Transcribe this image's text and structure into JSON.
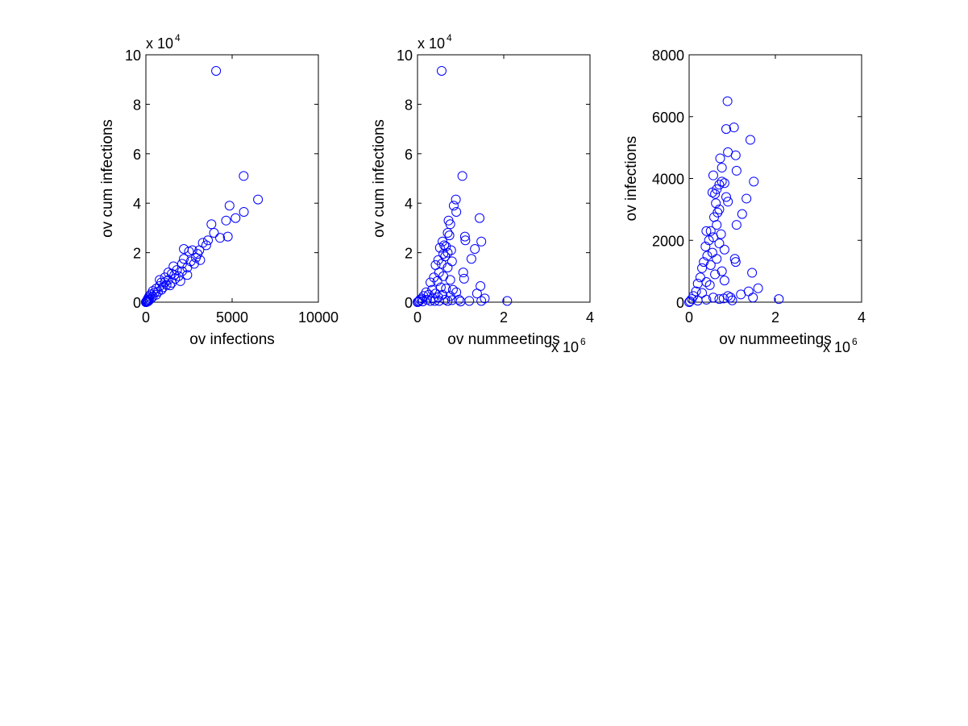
{
  "chart_data": [
    {
      "type": "scatter",
      "xlabel": "ov infections",
      "ylabel": "ov cum infections",
      "xlim": [
        0,
        10000
      ],
      "ylim": [
        0,
        100000
      ],
      "x_ticks": [
        0,
        5000,
        10000
      ],
      "x_tick_labels": [
        "0",
        "5000",
        "10000"
      ],
      "y_ticks": [
        0,
        20000,
        40000,
        60000,
        80000,
        100000
      ],
      "y_tick_labels": [
        "0",
        "2",
        "4",
        "6",
        "8",
        "10"
      ],
      "x_multiplier": "",
      "y_multiplier": {
        "base": "x 10",
        "exponent": "4"
      },
      "marker_color": "#0000ff",
      "grid": false,
      "points": [
        [
          4070,
          93500
        ],
        [
          5670,
          51000
        ],
        [
          6500,
          41500
        ],
        [
          4850,
          39000
        ],
        [
          5680,
          36500
        ],
        [
          5200,
          34000
        ],
        [
          4650,
          33000
        ],
        [
          3800,
          31500
        ],
        [
          3950,
          28000
        ],
        [
          4300,
          26000
        ],
        [
          4750,
          26500
        ],
        [
          3600,
          25000
        ],
        [
          3300,
          24000
        ],
        [
          2700,
          21000
        ],
        [
          2200,
          21500
        ],
        [
          2500,
          20500
        ],
        [
          3000,
          19500
        ],
        [
          3500,
          23000
        ],
        [
          2900,
          18000
        ],
        [
          2200,
          17500
        ],
        [
          2600,
          16500
        ],
        [
          3150,
          17000
        ],
        [
          2100,
          15500
        ],
        [
          1600,
          14500
        ],
        [
          2400,
          14000
        ],
        [
          1800,
          13000
        ],
        [
          2100,
          12500
        ],
        [
          1300,
          12000
        ],
        [
          1500,
          11500
        ],
        [
          2400,
          11000
        ],
        [
          1900,
          10500
        ],
        [
          1100,
          10000
        ],
        [
          1700,
          9500
        ],
        [
          1300,
          9000
        ],
        [
          2000,
          8500
        ],
        [
          900,
          8000
        ],
        [
          1500,
          7800
        ],
        [
          1200,
          7000
        ],
        [
          800,
          6500
        ],
        [
          1000,
          6000
        ],
        [
          1400,
          6800
        ],
        [
          600,
          5500
        ],
        [
          900,
          5000
        ],
        [
          400,
          4500
        ],
        [
          700,
          4200
        ],
        [
          500,
          3800
        ],
        [
          300,
          3200
        ],
        [
          600,
          3000
        ],
        [
          200,
          2500
        ],
        [
          400,
          2200
        ],
        [
          150,
          1800
        ],
        [
          300,
          1500
        ],
        [
          100,
          1200
        ],
        [
          200,
          900
        ],
        [
          80,
          700
        ],
        [
          150,
          500
        ],
        [
          50,
          400
        ],
        [
          100,
          300
        ],
        [
          30,
          200
        ],
        [
          60,
          150
        ],
        [
          20,
          100
        ],
        [
          40,
          60
        ],
        [
          10,
          40
        ],
        [
          5,
          20
        ],
        [
          0,
          0
        ],
        [
          800,
          9000
        ],
        [
          1100,
          8000
        ],
        [
          1650,
          11000
        ],
        [
          2800,
          15500
        ],
        [
          3100,
          21000
        ]
      ]
    },
    {
      "type": "scatter",
      "xlabel": "ov nummeetings",
      "ylabel": "ov cum infections",
      "xlim": [
        0,
        4000000
      ],
      "ylim": [
        0,
        100000
      ],
      "x_ticks": [
        0,
        2000000,
        4000000
      ],
      "x_tick_labels": [
        "0",
        "2",
        "4"
      ],
      "y_ticks": [
        0,
        20000,
        40000,
        60000,
        80000,
        100000
      ],
      "y_tick_labels": [
        "0",
        "2",
        "4",
        "6",
        "8",
        "10"
      ],
      "x_multiplier": {
        "base": "x 10",
        "exponent": "6"
      },
      "y_multiplier": {
        "base": "x 10",
        "exponent": "4"
      },
      "marker_color": "#0000ff",
      "grid": false,
      "points": [
        [
          560000,
          93500
        ],
        [
          1040000,
          51000
        ],
        [
          890000,
          41500
        ],
        [
          840000,
          39000
        ],
        [
          900000,
          36500
        ],
        [
          720000,
          33000
        ],
        [
          760000,
          31500
        ],
        [
          1440000,
          34000
        ],
        [
          700000,
          28000
        ],
        [
          740000,
          27000
        ],
        [
          1100000,
          26500
        ],
        [
          1110000,
          25000
        ],
        [
          1480000,
          24500
        ],
        [
          580000,
          24500
        ],
        [
          620000,
          23000
        ],
        [
          660000,
          22500
        ],
        [
          520000,
          22000
        ],
        [
          1330000,
          21500
        ],
        [
          780000,
          21000
        ],
        [
          700000,
          20000
        ],
        [
          600000,
          19500
        ],
        [
          640000,
          18500
        ],
        [
          1250000,
          17500
        ],
        [
          480000,
          17000
        ],
        [
          800000,
          16500
        ],
        [
          560000,
          15500
        ],
        [
          420000,
          15000
        ],
        [
          700000,
          14000
        ],
        [
          1060000,
          12000
        ],
        [
          500000,
          12000
        ],
        [
          1080000,
          9500
        ],
        [
          600000,
          10500
        ],
        [
          380000,
          10000
        ],
        [
          760000,
          9000
        ],
        [
          460000,
          8500
        ],
        [
          300000,
          8000
        ],
        [
          1460000,
          6500
        ],
        [
          820000,
          5000
        ],
        [
          540000,
          6000
        ],
        [
          660000,
          5500
        ],
        [
          1380000,
          3500
        ],
        [
          340000,
          5000
        ],
        [
          900000,
          4000
        ],
        [
          200000,
          4000
        ],
        [
          420000,
          3500
        ],
        [
          1560000,
          1500
        ],
        [
          1200000,
          500
        ],
        [
          1480000,
          500
        ],
        [
          2080000,
          500
        ],
        [
          960000,
          1000
        ],
        [
          760000,
          2500
        ],
        [
          580000,
          3000
        ],
        [
          260000,
          3000
        ],
        [
          140000,
          2500
        ],
        [
          480000,
          2000
        ],
        [
          360000,
          1500
        ],
        [
          100000,
          1500
        ],
        [
          640000,
          1000
        ],
        [
          220000,
          1000
        ],
        [
          60000,
          1000
        ],
        [
          300000,
          500
        ],
        [
          400000,
          500
        ],
        [
          500000,
          500
        ],
        [
          700000,
          500
        ],
        [
          40000,
          500
        ],
        [
          120000,
          300
        ],
        [
          20000,
          200
        ],
        [
          0,
          0
        ],
        [
          800000,
          800
        ],
        [
          1000000,
          300
        ]
      ]
    },
    {
      "type": "scatter",
      "xlabel": "ov nummeetings",
      "ylabel": "ov infections",
      "xlim": [
        0,
        4000000
      ],
      "ylim": [
        0,
        8000
      ],
      "x_ticks": [
        0,
        2000000,
        4000000
      ],
      "x_tick_labels": [
        "0",
        "2",
        "4"
      ],
      "y_ticks": [
        0,
        2000,
        4000,
        6000,
        8000
      ],
      "y_tick_labels": [
        "0",
        "2000",
        "4000",
        "6000",
        "8000"
      ],
      "x_multiplier": {
        "base": "x 10",
        "exponent": "6"
      },
      "y_multiplier": "",
      "marker_color": "#0000ff",
      "grid": false,
      "points": [
        [
          890000,
          6500
        ],
        [
          1420000,
          5250
        ],
        [
          1040000,
          5650
        ],
        [
          860000,
          5600
        ],
        [
          900000,
          4850
        ],
        [
          1080000,
          4750
        ],
        [
          720000,
          4650
        ],
        [
          760000,
          4350
        ],
        [
          1100000,
          4250
        ],
        [
          560000,
          4100
        ],
        [
          1500000,
          3900
        ],
        [
          760000,
          3900
        ],
        [
          820000,
          3850
        ],
        [
          700000,
          3800
        ],
        [
          640000,
          3650
        ],
        [
          540000,
          3550
        ],
        [
          600000,
          3500
        ],
        [
          860000,
          3400
        ],
        [
          1330000,
          3350
        ],
        [
          900000,
          3250
        ],
        [
          620000,
          3200
        ],
        [
          700000,
          3000
        ],
        [
          660000,
          2900
        ],
        [
          1230000,
          2850
        ],
        [
          580000,
          2750
        ],
        [
          640000,
          2500
        ],
        [
          1100000,
          2500
        ],
        [
          500000,
          2300
        ],
        [
          400000,
          2300
        ],
        [
          740000,
          2200
        ],
        [
          560000,
          2100
        ],
        [
          460000,
          2000
        ],
        [
          700000,
          1900
        ],
        [
          380000,
          1800
        ],
        [
          820000,
          1700
        ],
        [
          540000,
          1600
        ],
        [
          420000,
          1500
        ],
        [
          640000,
          1400
        ],
        [
          1060000,
          1400
        ],
        [
          1080000,
          1300
        ],
        [
          340000,
          1300
        ],
        [
          500000,
          1200
        ],
        [
          300000,
          1100
        ],
        [
          760000,
          1000
        ],
        [
          1460000,
          950
        ],
        [
          600000,
          900
        ],
        [
          260000,
          800
        ],
        [
          820000,
          700
        ],
        [
          400000,
          650
        ],
        [
          200000,
          600
        ],
        [
          480000,
          550
        ],
        [
          1600000,
          450
        ],
        [
          1380000,
          350
        ],
        [
          1200000,
          250
        ],
        [
          160000,
          350
        ],
        [
          300000,
          300
        ],
        [
          900000,
          200
        ],
        [
          1480000,
          150
        ],
        [
          2080000,
          100
        ],
        [
          960000,
          150
        ],
        [
          100000,
          200
        ],
        [
          560000,
          150
        ],
        [
          700000,
          100
        ],
        [
          60000,
          100
        ],
        [
          400000,
          80
        ],
        [
          200000,
          50
        ],
        [
          20000,
          30
        ],
        [
          0,
          0
        ],
        [
          800000,
          120
        ],
        [
          1000000,
          60
        ]
      ]
    }
  ]
}
